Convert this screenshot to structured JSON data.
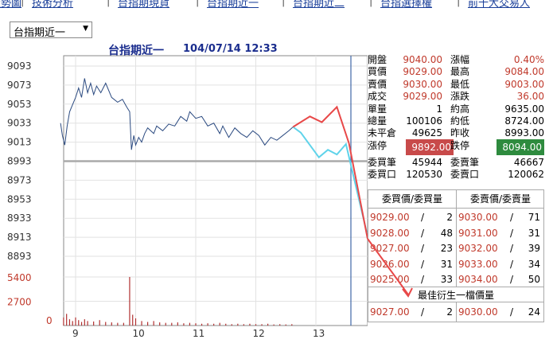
{
  "nav": {
    "items": [
      "走勢圖",
      "技術分析",
      "台指期現貨",
      "台指期近一",
      "台指期近二",
      "台指選擇權",
      "前十大交易人"
    ]
  },
  "selector": {
    "value": "台指期近一"
  },
  "header": {
    "title": "台指期近一",
    "datetime": "104/07/14 12:33"
  },
  "quote": {
    "rows": [
      {
        "l1": "開盤",
        "v1": "9040.00",
        "l2": "漲幅",
        "v2": "0.40%"
      },
      {
        "l1": "買價",
        "v1": "9029.00",
        "l2": "最高",
        "v2": "9084.00"
      },
      {
        "l1": "賣價",
        "v1": "9030.00",
        "l2": "最低",
        "v2": "9003.00"
      },
      {
        "l1": "成交",
        "v1": "9029.00",
        "l2": "漲跌",
        "v2": "36.00"
      },
      {
        "l1": "單量",
        "v1": "1",
        "l2": "約高",
        "v2": "9635.00"
      },
      {
        "l1": "總量",
        "v1": "100106",
        "l2": "約低",
        "v2": "8724.00"
      },
      {
        "l1": "未平倉",
        "v1": "49625",
        "l2": "昨收",
        "v2": "8993.00"
      },
      {
        "l1": "漲停",
        "v1": "9892.00",
        "l2": "跌停",
        "v2": "8094.00"
      },
      {
        "l1": "委買筆",
        "v1": "45944",
        "l2": "委賣筆",
        "v2": "46667"
      },
      {
        "l1": "委買口",
        "v1": "120530",
        "l2": "委賣口",
        "v2": "120062"
      }
    ]
  },
  "book": {
    "bid_header": "委買價/委買量",
    "ask_header": "委賣價/委賣量",
    "bids": [
      {
        "price": "9029.00",
        "vol": "2"
      },
      {
        "price": "9028.00",
        "vol": "48"
      },
      {
        "price": "9027.00",
        "vol": "23"
      },
      {
        "price": "9026.00",
        "vol": "31"
      },
      {
        "price": "9025.00",
        "vol": "33"
      }
    ],
    "asks": [
      {
        "price": "9030.00",
        "vol": "71"
      },
      {
        "price": "9031.00",
        "vol": "31"
      },
      {
        "price": "9032.00",
        "vol": "39"
      },
      {
        "price": "9033.00",
        "vol": "34"
      },
      {
        "price": "9034.00",
        "vol": "50"
      }
    ],
    "best_header": "最佳衍生一檔價量",
    "best_bid": {
      "price": "9027.00",
      "vol": "2"
    },
    "best_ask": {
      "price": "9030.00",
      "vol": "24"
    }
  },
  "chart_data": {
    "type": "line",
    "title": "台指期近一 104/07/14 12:33",
    "y_ticks": [
      "9093",
      "9073",
      "9053",
      "9033",
      "9013",
      "8993",
      "8973",
      "8953",
      "8933",
      "8913",
      "8893"
    ],
    "ylim": [
      8893,
      9093
    ],
    "x_ticks": [
      "9",
      "10",
      "11",
      "12",
      "13"
    ],
    "reference_price": 8993,
    "volume_ticks": [
      "5400",
      "2700",
      "0"
    ],
    "volume_max": 5400,
    "price_series": [
      [
        8.75,
        9033
      ],
      [
        8.78,
        9020
      ],
      [
        8.82,
        9010
      ],
      [
        8.86,
        9030
      ],
      [
        8.9,
        9045
      ],
      [
        9.0,
        9060
      ],
      [
        9.05,
        9070
      ],
      [
        9.1,
        9060
      ],
      [
        9.15,
        9080
      ],
      [
        9.2,
        9065
      ],
      [
        9.25,
        9075
      ],
      [
        9.3,
        9063
      ],
      [
        9.35,
        9072
      ],
      [
        9.42,
        9065
      ],
      [
        9.5,
        9075
      ],
      [
        9.6,
        9060
      ],
      [
        9.7,
        9055
      ],
      [
        9.78,
        9058
      ],
      [
        9.85,
        9050
      ],
      [
        9.9,
        9045
      ],
      [
        9.93,
        9005
      ],
      [
        9.97,
        9020
      ],
      [
        10.0,
        9010
      ],
      [
        10.05,
        9018
      ],
      [
        10.1,
        9013
      ],
      [
        10.15,
        9022
      ],
      [
        10.2,
        9028
      ],
      [
        10.3,
        9022
      ],
      [
        10.35,
        9030
      ],
      [
        10.45,
        9025
      ],
      [
        10.55,
        9032
      ],
      [
        10.65,
        9030
      ],
      [
        10.75,
        9040
      ],
      [
        10.85,
        9035
      ],
      [
        10.9,
        9045
      ],
      [
        11.0,
        9038
      ],
      [
        11.1,
        9040
      ],
      [
        11.2,
        9030
      ],
      [
        11.3,
        9033
      ],
      [
        11.4,
        9022
      ],
      [
        11.45,
        9030
      ],
      [
        11.55,
        9018
      ],
      [
        11.65,
        9028
      ],
      [
        11.75,
        9022
      ],
      [
        11.85,
        9018
      ],
      [
        11.95,
        9025
      ],
      [
        12.05,
        9020
      ],
      [
        12.15,
        9010
      ],
      [
        12.25,
        9018
      ],
      [
        12.35,
        9015
      ],
      [
        12.45,
        9020
      ],
      [
        12.55,
        9025
      ],
      [
        12.62,
        9029
      ]
    ],
    "forecast_red": [
      [
        12.62,
        9029
      ],
      [
        12.9,
        9040
      ],
      [
        13.1,
        9034
      ],
      [
        13.35,
        9050
      ],
      [
        13.55,
        9012
      ],
      [
        13.85,
        8835
      ]
    ],
    "forecast_cyan": [
      [
        12.62,
        9029
      ],
      [
        12.75,
        9023
      ],
      [
        13.05,
        8997
      ],
      [
        13.2,
        9005
      ],
      [
        13.35,
        9000
      ],
      [
        13.5,
        9011
      ],
      [
        13.85,
        8917
      ]
    ],
    "volume_bars": [
      [
        8.8,
        900
      ],
      [
        8.85,
        1300
      ],
      [
        8.9,
        700
      ],
      [
        8.95,
        500
      ],
      [
        9.0,
        900
      ],
      [
        9.05,
        600
      ],
      [
        9.1,
        400
      ],
      [
        9.15,
        700
      ],
      [
        9.2,
        500
      ],
      [
        9.3,
        450
      ],
      [
        9.4,
        600
      ],
      [
        9.5,
        400
      ],
      [
        9.6,
        350
      ],
      [
        9.7,
        300
      ],
      [
        9.8,
        300
      ],
      [
        9.9,
        5400
      ],
      [
        9.95,
        1200
      ],
      [
        10.0,
        800
      ],
      [
        10.1,
        500
      ],
      [
        10.2,
        400
      ],
      [
        10.3,
        500
      ],
      [
        10.4,
        350
      ],
      [
        10.5,
        300
      ],
      [
        10.6,
        300
      ],
      [
        10.7,
        350
      ],
      [
        10.8,
        250
      ],
      [
        10.9,
        300
      ],
      [
        11.0,
        250
      ],
      [
        11.1,
        200
      ],
      [
        11.2,
        250
      ],
      [
        11.3,
        200
      ],
      [
        11.4,
        300
      ],
      [
        11.5,
        200
      ],
      [
        11.6,
        150
      ],
      [
        11.7,
        200
      ],
      [
        11.8,
        150
      ],
      [
        11.9,
        200
      ],
      [
        12.0,
        150
      ],
      [
        12.1,
        150
      ],
      [
        12.2,
        200
      ],
      [
        12.3,
        120
      ],
      [
        12.4,
        150
      ],
      [
        12.5,
        120
      ],
      [
        12.6,
        150
      ]
    ]
  }
}
